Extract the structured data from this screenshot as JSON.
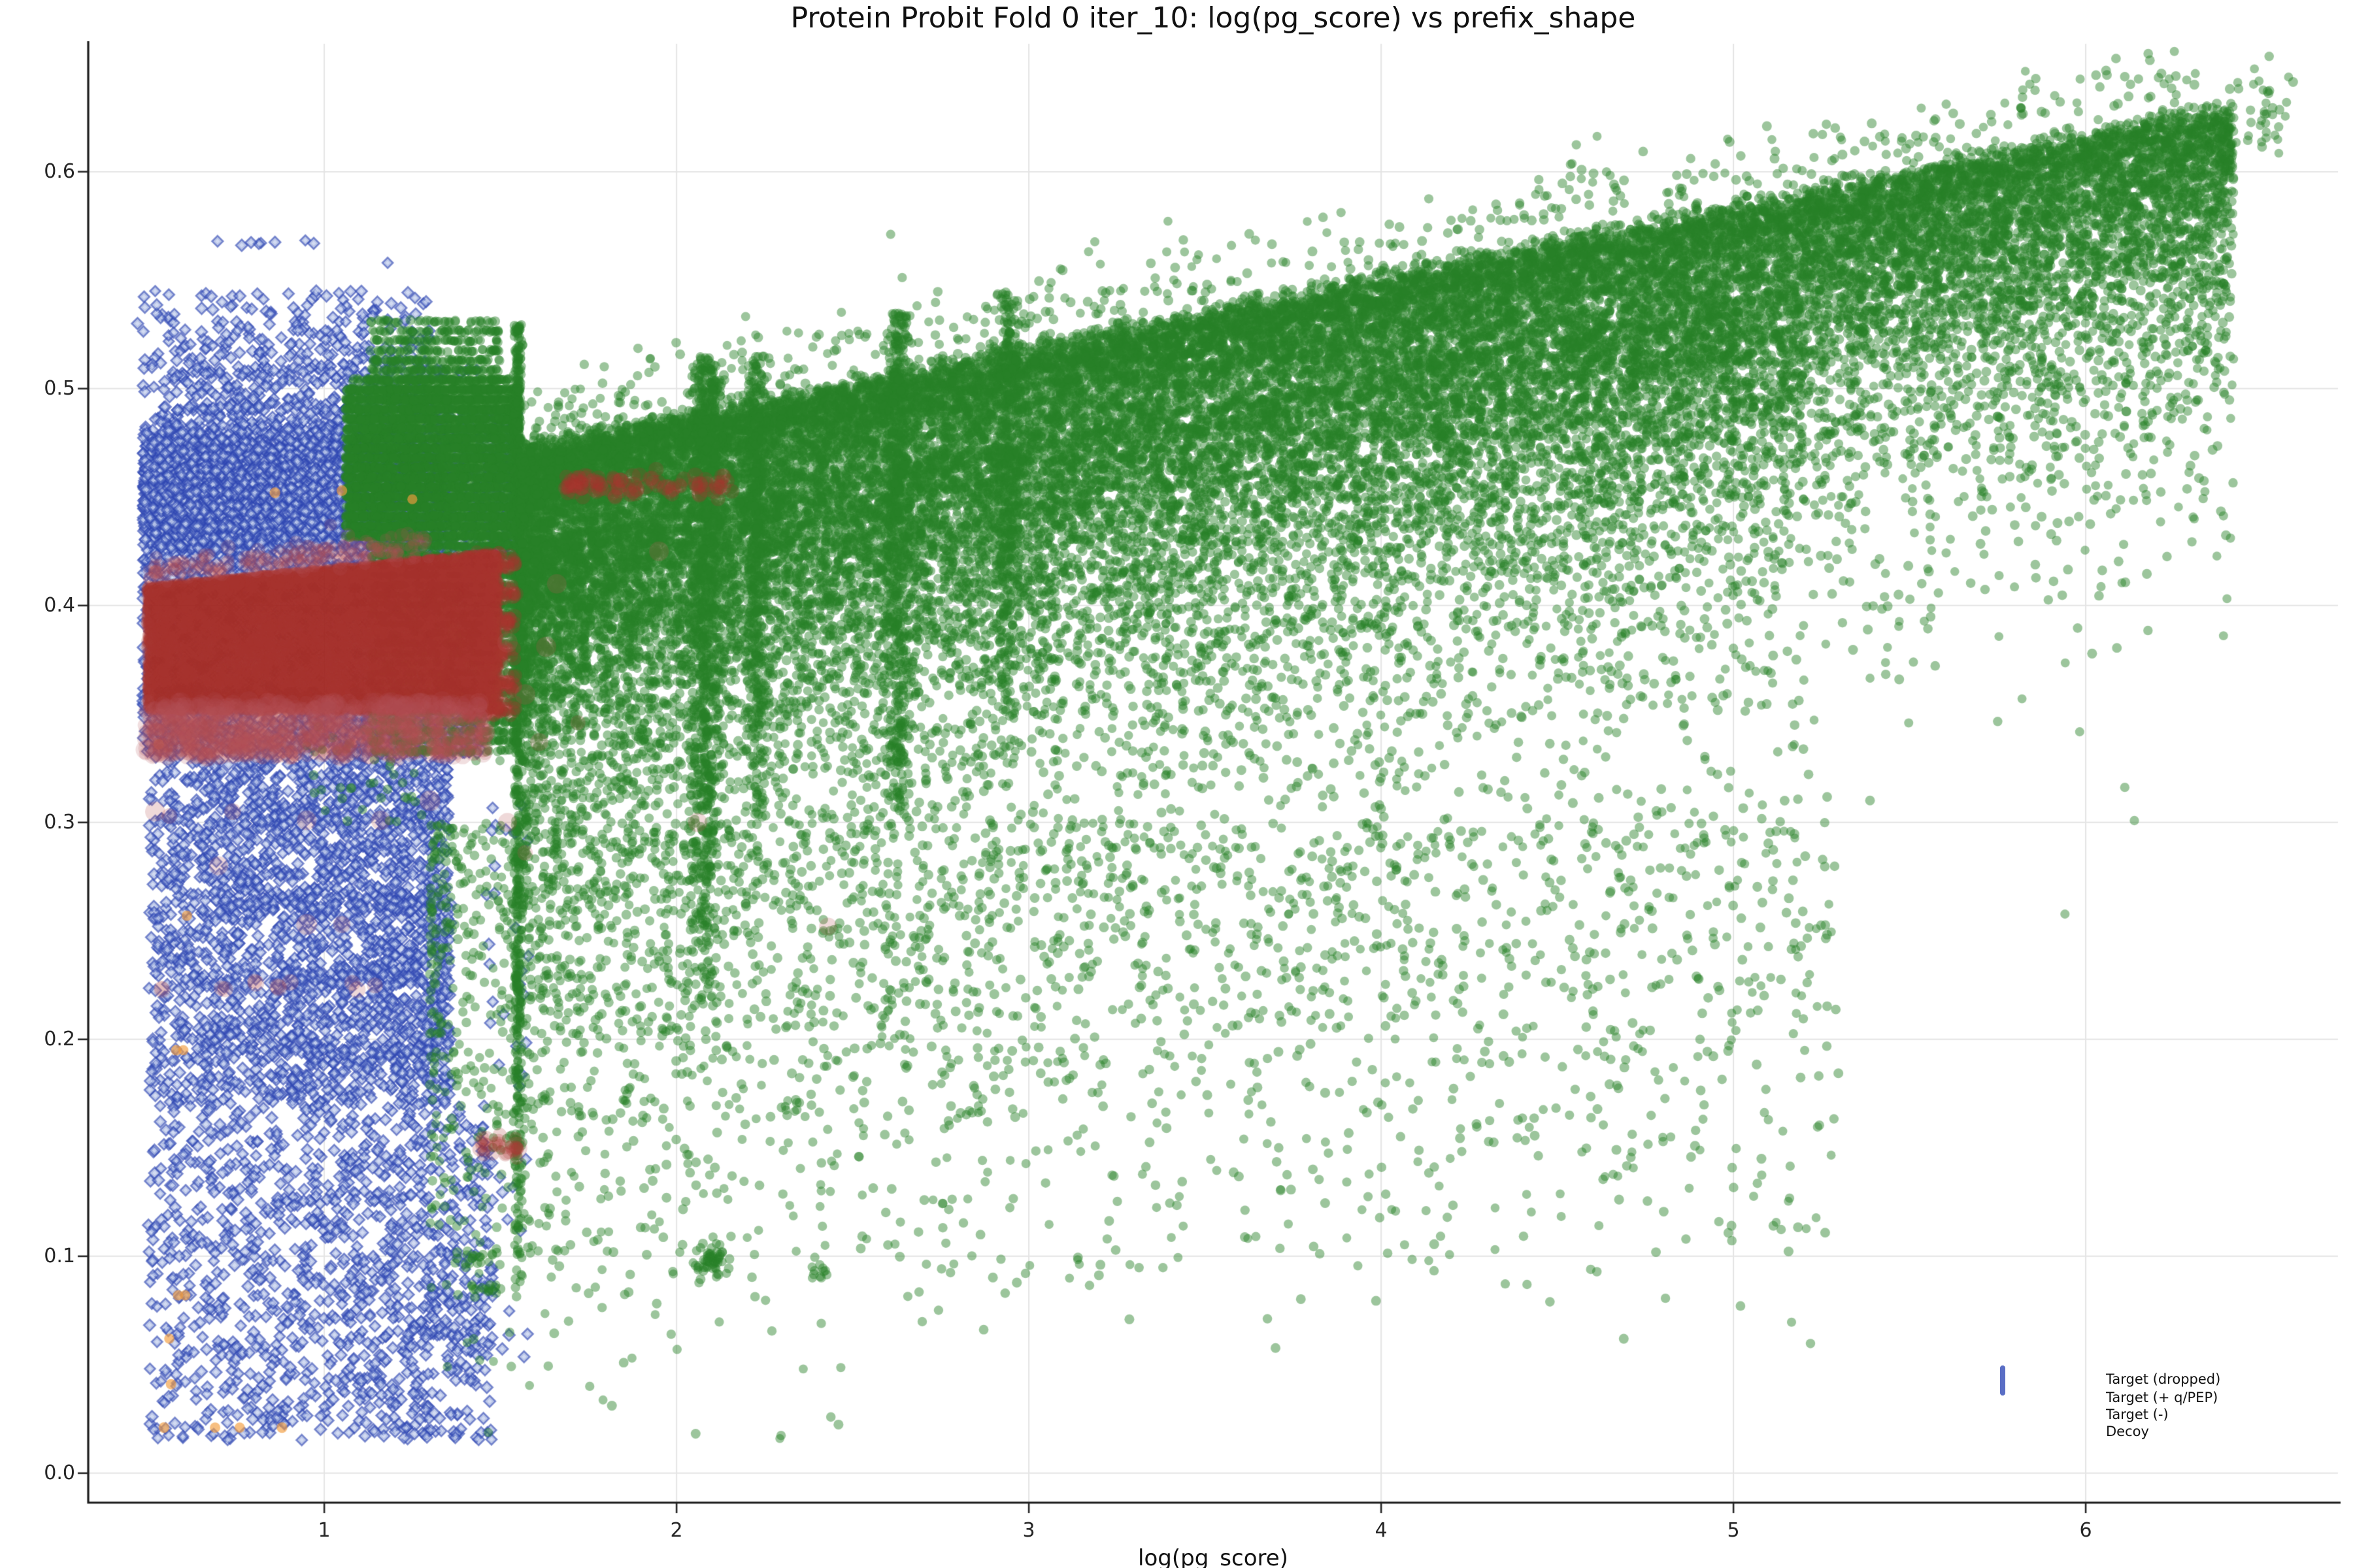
{
  "title": "Protein Probit Fold 0 iter_10: log(pg_score) vs prefix_shape",
  "axes": {
    "xlabel": "log(pg_score)",
    "xmin": 0.33,
    "xmax": 6.716,
    "ymin": -0.0136,
    "ymax": 0.659,
    "x_ticks": [
      {
        "v": 1,
        "label": "1"
      },
      {
        "v": 2,
        "label": "2"
      },
      {
        "v": 3,
        "label": "3"
      },
      {
        "v": 4,
        "label": "4"
      },
      {
        "v": 5,
        "label": "5"
      },
      {
        "v": 6,
        "label": "6"
      }
    ],
    "y_ticks": [
      {
        "v": 0.0,
        "label": "0.0"
      },
      {
        "v": 0.1,
        "label": "0.1"
      },
      {
        "v": 0.2,
        "label": "0.2"
      },
      {
        "v": 0.3,
        "label": "0.3"
      },
      {
        "v": 0.4,
        "label": "0.4"
      },
      {
        "v": 0.5,
        "label": "0.5"
      },
      {
        "v": 0.6,
        "label": "0.6"
      }
    ],
    "grid_color": "#e4e4e4",
    "spine_color": "#1a1a1a",
    "tick_color": "#262626"
  },
  "legend": {
    "items": [
      {
        "label": "Target (dropped)",
        "marker": "diamond",
        "fill": "#a9b7e6",
        "edge": "#5a6ec5"
      },
      {
        "label": "Target (+ q/PEP)",
        "marker": "circle",
        "fill": "#80bb80",
        "edge": "#80bb80"
      },
      {
        "label": "Target (-)",
        "marker": "circle",
        "fill": "#f8cf97",
        "edge": "#f8cf97"
      },
      {
        "label": "Decoy",
        "marker": "circle",
        "fill": "#e9c2c6",
        "edge": "#e9c2c6"
      }
    ]
  },
  "chart_data": {
    "type": "scatter",
    "title": "Protein Probit Fold 0 iter_10: log(pg_score) vs prefix_shape",
    "xlabel": "log(pg_score)",
    "xlim": [
      0.33,
      6.716
    ],
    "ylim": [
      -0.0136,
      0.659
    ],
    "grid": true,
    "legend_position": "lower right",
    "seed": 42,
    "series": [
      {
        "name": "Target (dropped)",
        "marker": "diamond",
        "fill": "rgba(118,140,208,0.50)",
        "edge": "rgba(47,70,178,0.60)",
        "inner": "rgba(232,238,252,0.55)",
        "size": 4.0,
        "sizejit": 0.5,
        "linewidth": 1.3,
        "clusters": [
          {
            "kind": "xboxgy",
            "n": 5200,
            "x0": 0.485,
            "x1": 1.33,
            "xpow": 0.9,
            "cy": 0.4555,
            "sy": 0.0125,
            "ylo": 0.428,
            "yhi": 0.49
          },
          {
            "kind": "xboxgy",
            "n": 2200,
            "x0": 0.485,
            "x1": 1.36,
            "xpow": 1.0,
            "cy": 0.442,
            "sy": 0.02,
            "ylo": 0.398,
            "yhi": 0.505
          },
          {
            "kind": "row",
            "n": 130,
            "x0": 0.55,
            "x1": 1.15,
            "y": 0.452,
            "sy": 0.0015
          },
          {
            "kind": "row",
            "n": 90,
            "x0": 0.58,
            "x1": 1.3,
            "y": 0.444,
            "sy": 0.0015
          },
          {
            "kind": "row",
            "n": 70,
            "x0": 0.5,
            "x1": 1.1,
            "y": 0.437,
            "sy": 0.0015
          },
          {
            "kind": "row",
            "n": 46,
            "x0": 0.62,
            "x1": 1.45,
            "y": 0.508,
            "sy": 0.0015
          },
          {
            "kind": "box",
            "n": 1600,
            "x0": 0.485,
            "x1": 1.43,
            "y0": 0.352,
            "y1": 0.41
          },
          {
            "kind": "box",
            "n": 900,
            "x0": 0.485,
            "x1": 1.45,
            "y0": 0.332,
            "y1": 0.362
          },
          {
            "kind": "box",
            "n": 2400,
            "x0": 0.5,
            "x1": 1.36,
            "xpow": 0.85,
            "y0": 0.17,
            "y1": 0.332
          },
          {
            "kind": "row",
            "n": 55,
            "x0": 0.5,
            "x1": 1.3,
            "y": 0.302,
            "sy": 0.002
          },
          {
            "kind": "row",
            "n": 70,
            "x0": 0.72,
            "x1": 1.32,
            "y": 0.262,
            "sy": 0.002
          },
          {
            "kind": "row",
            "n": 55,
            "x0": 0.86,
            "x1": 1.28,
            "y": 0.228,
            "sy": 0.002
          },
          {
            "kind": "row",
            "n": 42,
            "x0": 0.55,
            "x1": 1.3,
            "y": 0.195,
            "sy": 0.002
          },
          {
            "kind": "box",
            "n": 1200,
            "x0": 0.5,
            "x1": 1.48,
            "xpow": 0.9,
            "y0": 0.015,
            "y1": 0.17
          },
          {
            "kind": "row",
            "n": 26,
            "x0": 1.22,
            "x1": 1.43,
            "y": 0.065,
            "sy": 0.0015
          },
          {
            "kind": "row",
            "n": 12,
            "x0": 0.85,
            "x1": 1.05,
            "y": 0.125,
            "sy": 0.0015
          },
          {
            "kind": "row",
            "n": 10,
            "x0": 1.05,
            "x1": 1.25,
            "y": 0.145,
            "sy": 0.0015
          },
          {
            "kind": "box",
            "n": 420,
            "x0": 0.485,
            "x1": 1.3,
            "xpow": 0.95,
            "y0": 0.49,
            "y1": 0.545,
            "ypow": 1.6
          },
          {
            "kind": "row",
            "n": 7,
            "x0": 0.58,
            "x1": 1.02,
            "y": 0.567,
            "sy": 0.001
          },
          {
            "kind": "box",
            "n": 260,
            "x0": 1.33,
            "x1": 1.55,
            "y0": 0.42,
            "y1": 0.49
          },
          {
            "kind": "box",
            "n": 40,
            "x0": 1.45,
            "x1": 1.58,
            "y0": 0.05,
            "y1": 0.33
          },
          {
            "kind": "points",
            "pts": [
              [
                0.47,
                0.53
              ],
              [
                0.52,
                0.545
              ],
              [
                1.18,
                0.558
              ],
              [
                0.97,
                0.567
              ]
            ]
          }
        ]
      },
      {
        "name": "Target (+ q/PEP)",
        "marker": "circle",
        "fill": "rgba(40,129,40,0.46)",
        "size": 3.4,
        "sizejit": 0.4,
        "clusters": [
          {
            "kind": "box",
            "n": 5200,
            "x0": 1.06,
            "x1": 1.555,
            "y0": 0.432,
            "y1": 0.503,
            "ysnap": 0.0045
          },
          {
            "kind": "box",
            "n": 450,
            "x0": 1.13,
            "x1": 1.5,
            "y0": 0.503,
            "y1": 0.532,
            "ysnap": 0.0045,
            "ypow": 1.4
          },
          {
            "kind": "box",
            "n": 2600,
            "x0": 1.13,
            "x1": 1.555,
            "y0": 0.33,
            "y1": 0.432,
            "ysnap": 0.0045,
            "ypow": 0.8
          },
          {
            "kind": "col",
            "n": 650,
            "cx": 1.549,
            "sx": 0.006,
            "y0": 0.07,
            "y1": 0.53,
            "ypow": 0.7
          },
          {
            "kind": "band",
            "n": 26000,
            "x0": 1.555,
            "x1": 6.42,
            "xpow": 1.25,
            "e0": 0.418,
            "e1": 0.0327,
            "spread": 0.052,
            "pw": 1.35,
            "up": 0.004
          },
          {
            "kind": "bandexp",
            "n": 7500,
            "x0": 1.555,
            "x1": 5.2,
            "xpow": 1.3,
            "e0": 0.418,
            "e1": 0.0327,
            "off": 0.04,
            "scale": 0.075,
            "ymin": 0.09
          },
          {
            "kind": "box",
            "n": 2000,
            "x0": 1.3,
            "x1": 5.3,
            "xpow": 1.5,
            "y0": 0.045,
            "y1": 0.3,
            "ypow": 0.45
          },
          {
            "kind": "col",
            "n": 850,
            "cx": 2.085,
            "sx": 0.022,
            "y0": 0.2,
            "y1": 0.515,
            "ypow": 0.6
          },
          {
            "kind": "col",
            "n": 420,
            "cx": 2.225,
            "sx": 0.015,
            "y0": 0.3,
            "y1": 0.515,
            "ypow": 0.7
          },
          {
            "kind": "col",
            "n": 500,
            "cx": 2.63,
            "sx": 0.018,
            "y0": 0.3,
            "y1": 0.535,
            "ypow": 0.7
          },
          {
            "kind": "col",
            "n": 360,
            "cx": 2.94,
            "sx": 0.016,
            "y0": 0.33,
            "y1": 0.545,
            "ypow": 0.7
          },
          {
            "kind": "gauss",
            "n": 46,
            "cx": 2.1,
            "cy": 0.098,
            "sx": 0.02,
            "sy": 0.004
          },
          {
            "kind": "gauss",
            "n": 12,
            "cx": 2.41,
            "cy": 0.092,
            "sx": 0.012,
            "sy": 0.003
          },
          {
            "kind": "row",
            "n": 22,
            "x0": 1.36,
            "x1": 1.52,
            "y": 0.1,
            "sy": 0.002
          },
          {
            "kind": "row",
            "n": 16,
            "x0": 1.4,
            "x1": 1.51,
            "y": 0.085,
            "sy": 0.002
          },
          {
            "kind": "box",
            "n": 26,
            "x0": 1.3,
            "x1": 2.6,
            "y0": 0.015,
            "y1": 0.075
          },
          {
            "kind": "gauss",
            "n": 36,
            "cx": 6.5,
            "cy": 0.627,
            "sx": 0.035,
            "sy": 0.01,
            "tilt": 0.12
          },
          {
            "kind": "band",
            "n": 380,
            "x0": 1.6,
            "x1": 6.35,
            "xpow": 1.0,
            "e0": 0.4295,
            "e1": 0.0327,
            "spread": -0.013,
            "pw": 1.0,
            "up": 0.0
          },
          {
            "kind": "bandexp",
            "n": 550,
            "x0": 4.5,
            "x1": 6.35,
            "xpow": 1.0,
            "e0": 0.418,
            "e1": 0.0327,
            "off": 0.03,
            "scale": 0.05,
            "ymin": 0.3
          },
          {
            "kind": "box",
            "n": 120,
            "x0": 1.56,
            "x1": 1.72,
            "y0": 0.34,
            "y1": 0.5
          },
          {
            "kind": "box",
            "n": 40,
            "x0": 0.95,
            "x1": 1.3,
            "y0": 0.3,
            "y1": 0.345
          },
          {
            "kind": "points",
            "pts": [
              [
                6.57,
                0.632
              ],
              [
                6.38,
                0.606
              ],
              [
                6.33,
                0.601
              ],
              [
                5.9,
                0.585
              ]
            ]
          }
        ]
      },
      {
        "name": "Target (-)",
        "marker": "circle",
        "fill": "rgba(243,157,62,0.65)",
        "size": 3.8,
        "sizejit": 0.3,
        "clusters": [
          {
            "kind": "points",
            "pts": [
              [
                0.86,
                0.452
              ],
              [
                1.05,
                0.453
              ],
              [
                1.25,
                0.449
              ],
              [
                0.62,
                0.394
              ],
              [
                0.61,
                0.257
              ],
              [
                0.58,
                0.195
              ],
              [
                0.6,
                0.195
              ],
              [
                0.585,
                0.082
              ],
              [
                0.605,
                0.082
              ],
              [
                0.56,
                0.062
              ],
              [
                0.565,
                0.041
              ],
              [
                0.545,
                0.021
              ],
              [
                0.69,
                0.021
              ],
              [
                0.76,
                0.021
              ],
              [
                0.88,
                0.021
              ],
              [
                0.53,
                0.336
              ]
            ]
          }
        ]
      },
      {
        "name": "Decoy",
        "marker": "circle",
        "fill": "rgba(167,52,48,0.215)",
        "size": 4.6,
        "sizejit": 1.2,
        "clusters": [
          {
            "kind": "topbox",
            "n": 14000,
            "x0": 0.5,
            "x1": 1.49,
            "t0": 0.408,
            "t1": 0.016,
            "y0": 0.352,
            "ypow": 1.2
          },
          {
            "kind": "row",
            "n": 60,
            "x0": 1.4,
            "x1": 1.545,
            "y": 0.42,
            "sy": 0.002
          },
          {
            "kind": "row",
            "n": 60,
            "x0": 1.4,
            "x1": 1.545,
            "y": 0.406,
            "sy": 0.002
          },
          {
            "kind": "row",
            "n": 60,
            "x0": 1.4,
            "x1": 1.545,
            "y": 0.392,
            "sy": 0.002
          },
          {
            "kind": "row",
            "n": 60,
            "x0": 1.4,
            "x1": 1.545,
            "y": 0.378,
            "sy": 0.002
          },
          {
            "kind": "row",
            "n": 60,
            "x0": 1.4,
            "x1": 1.545,
            "y": 0.364,
            "sy": 0.002
          },
          {
            "kind": "row",
            "n": 60,
            "x0": 1.4,
            "x1": 1.545,
            "y": 0.352,
            "sy": 0.002
          },
          {
            "kind": "box",
            "n": 950,
            "x0": 0.49,
            "x1": 1.46,
            "y0": 0.33,
            "y1": 0.356,
            "r": 4.5,
            "rjit": 3.5,
            "fill": "rgba(180,80,82,0.18)"
          },
          {
            "kind": "band",
            "n": 200,
            "x0": 0.5,
            "x1": 1.3,
            "xpow": 1.0,
            "e0": 0.404,
            "e1": 0.016,
            "spread": -0.004,
            "pw": 1.0,
            "up": 0.002,
            "r": 4.0,
            "rjit": 2.0,
            "fill": "rgba(180,80,82,0.18)"
          },
          {
            "kind": "clumps",
            "n": 110,
            "centers": [
              1.695,
              1.73,
              1.775,
              1.83,
              1.875,
              1.93,
              1.99,
              2.07,
              2.13
            ],
            "sx": 0.012,
            "cy": 0.4555,
            "sy": 0.0028,
            "r": 5.2,
            "rjit": 1.0
          },
          {
            "kind": "row",
            "n": 30,
            "x0": 1.44,
            "x1": 1.55,
            "y": 0.151,
            "sy": 0.0025,
            "r": 4.8,
            "rjit": 1.0
          },
          {
            "kind": "points",
            "pts": [
              [
                1.545,
                0.15
              ]
            ],
            "r": 8,
            "fill": "rgba(180,80,82,0.22)"
          },
          {
            "kind": "row",
            "n": 11,
            "x0": 0.52,
            "x1": 1.18,
            "y": 0.225,
            "sy": 0.0015,
            "r": 5.0,
            "rjit": 1.5,
            "fill": "rgba(180,80,82,0.22)"
          },
          {
            "kind": "points",
            "r": 5.5,
            "rjit": 2.5,
            "fill": "rgba(180,80,82,0.22)",
            "pts": [
              [
                0.52,
                0.305
              ],
              [
                0.56,
                0.303
              ],
              [
                0.95,
                0.301
              ],
              [
                1.16,
                0.301
              ],
              [
                0.7,
                0.28
              ],
              [
                1.3,
                0.31
              ],
              [
                1.52,
                0.383
              ],
              [
                1.63,
                0.381
              ],
              [
                1.57,
                0.359
              ],
              [
                1.61,
                0.337
              ],
              [
                1.72,
                0.346
              ],
              [
                2.06,
                0.3
              ],
              [
                1.66,
                0.41
              ],
              [
                1.05,
                0.253
              ],
              [
                0.95,
                0.253
              ],
              [
                1.52,
                0.3
              ],
              [
                1.57,
                0.286
              ],
              [
                1.08,
                0.226
              ],
              [
                2.43,
                0.252
              ],
              [
                1.95,
                0.425
              ],
              [
                0.74,
                0.305
              ]
            ]
          }
        ]
      }
    ]
  }
}
